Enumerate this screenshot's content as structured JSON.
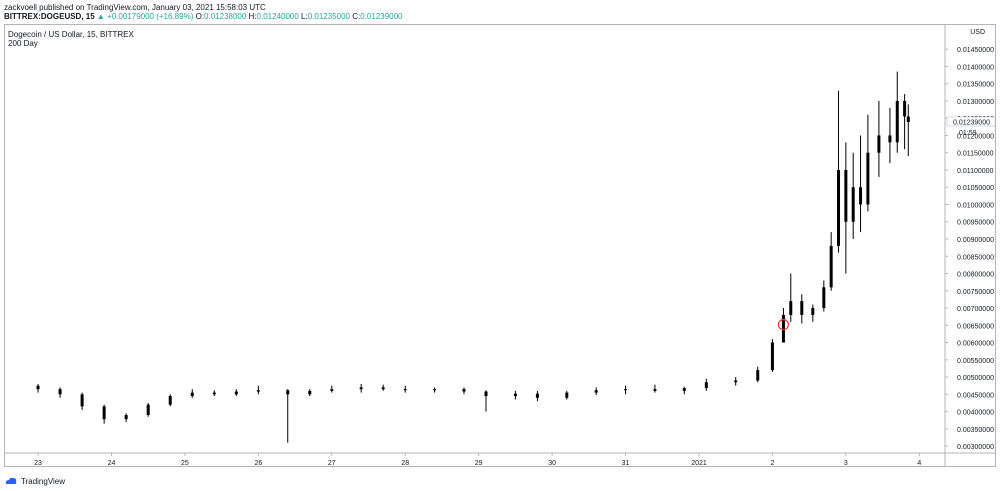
{
  "header": {
    "publisher_line": "zackvoell published on TradingView.com, January 03, 2021 15:58:03 UTC",
    "symbol": "BITTREX:DOGEUSD, 15",
    "change": "+0.00179000 (+16.89%)",
    "o_label": "O:",
    "o_value": "0.01238000",
    "h_label": "H:",
    "h_value": "0.01240000",
    "l_label": "L:",
    "l_value": "0.01235000",
    "c_label": "C:",
    "c_value": "0.01239000"
  },
  "legend": {
    "title": "Dogecoin / US Dollar, 15, BITTREX",
    "subtitle": "200 Day"
  },
  "footer": {
    "brand": "TradingView"
  },
  "colors": {
    "up": "#26a69a",
    "candle": "#000000",
    "marker": "#e53935",
    "grid": "#f0f3fa",
    "axis": "#b2b5be"
  },
  "chart_data": {
    "type": "candlestick",
    "currency_label": "USD",
    "last_price_label": "0.01239000",
    "countdown_label": "01:59",
    "y_ticks": [
      "0.01450000",
      "0.01400000",
      "0.01350000",
      "0.01300000",
      "0.01250000",
      "0.01200000",
      "0.01150000",
      "0.01100000",
      "0.01050000",
      "0.01000000",
      "0.00950000",
      "0.00900000",
      "0.00850000",
      "0.00800000",
      "0.00750000",
      "0.00700000",
      "0.00650000",
      "0.00600000",
      "0.00550000",
      "0.00500000",
      "0.00450000",
      "0.00400000",
      "0.00350000",
      "0.00300000"
    ],
    "x_tick_labels": [
      "23",
      "24",
      "25",
      "26",
      "27",
      "28",
      "29",
      "30",
      "31",
      "2021",
      "2",
      "3",
      "4"
    ],
    "ylim": [
      0.0028,
      0.0152
    ],
    "series": [
      {
        "t": 23.0,
        "o": 0.00475,
        "h": 0.0048,
        "l": 0.00455,
        "c": 0.00465
      },
      {
        "t": 23.3,
        "o": 0.00465,
        "h": 0.0047,
        "l": 0.0044,
        "c": 0.0045
      },
      {
        "t": 23.6,
        "o": 0.0045,
        "h": 0.00455,
        "l": 0.00405,
        "c": 0.00415
      },
      {
        "t": 23.9,
        "o": 0.00415,
        "h": 0.0042,
        "l": 0.00365,
        "c": 0.00378
      },
      {
        "t": 24.2,
        "o": 0.00378,
        "h": 0.00395,
        "l": 0.0037,
        "c": 0.0039
      },
      {
        "t": 24.5,
        "o": 0.0039,
        "h": 0.00425,
        "l": 0.00385,
        "c": 0.0042
      },
      {
        "t": 24.8,
        "o": 0.0042,
        "h": 0.0045,
        "l": 0.00415,
        "c": 0.00445
      },
      {
        "t": 25.1,
        "o": 0.00445,
        "h": 0.00465,
        "l": 0.0044,
        "c": 0.00455
      },
      {
        "t": 25.4,
        "o": 0.00455,
        "h": 0.00462,
        "l": 0.00445,
        "c": 0.0045
      },
      {
        "t": 25.7,
        "o": 0.0045,
        "h": 0.00465,
        "l": 0.00445,
        "c": 0.00458
      },
      {
        "t": 26.0,
        "o": 0.00458,
        "h": 0.00475,
        "l": 0.0045,
        "c": 0.00462
      },
      {
        "t": 26.4,
        "o": 0.00462,
        "h": 0.00465,
        "l": 0.0031,
        "c": 0.0045
      },
      {
        "t": 26.7,
        "o": 0.0045,
        "h": 0.00465,
        "l": 0.00445,
        "c": 0.0046
      },
      {
        "t": 27.0,
        "o": 0.0046,
        "h": 0.00475,
        "l": 0.00455,
        "c": 0.00465
      },
      {
        "t": 27.4,
        "o": 0.00465,
        "h": 0.0048,
        "l": 0.00455,
        "c": 0.0047
      },
      {
        "t": 27.7,
        "o": 0.0047,
        "h": 0.00478,
        "l": 0.0046,
        "c": 0.00465
      },
      {
        "t": 28.0,
        "o": 0.00465,
        "h": 0.00475,
        "l": 0.00455,
        "c": 0.00462
      },
      {
        "t": 28.4,
        "o": 0.00462,
        "h": 0.0047,
        "l": 0.00455,
        "c": 0.00465
      },
      {
        "t": 28.8,
        "o": 0.00465,
        "h": 0.0047,
        "l": 0.0045,
        "c": 0.00458
      },
      {
        "t": 29.1,
        "o": 0.00458,
        "h": 0.00462,
        "l": 0.004,
        "c": 0.00445
      },
      {
        "t": 29.5,
        "o": 0.00445,
        "h": 0.0046,
        "l": 0.00435,
        "c": 0.00452
      },
      {
        "t": 29.8,
        "o": 0.00452,
        "h": 0.0046,
        "l": 0.0043,
        "c": 0.0044
      },
      {
        "t": 30.2,
        "o": 0.0044,
        "h": 0.0046,
        "l": 0.00435,
        "c": 0.00455
      },
      {
        "t": 30.6,
        "o": 0.00455,
        "h": 0.0047,
        "l": 0.00448,
        "c": 0.00462
      },
      {
        "t": 31.0,
        "o": 0.00462,
        "h": 0.00475,
        "l": 0.0045,
        "c": 0.00465
      },
      {
        "t": 31.4,
        "o": 0.00465,
        "h": 0.00478,
        "l": 0.00455,
        "c": 0.0046
      },
      {
        "t": 31.8,
        "o": 0.0046,
        "h": 0.00472,
        "l": 0.0045,
        "c": 0.00468
      },
      {
        "t": 32.1,
        "o": 0.00468,
        "h": 0.00495,
        "l": 0.0046,
        "c": 0.00485
      },
      {
        "t": 32.5,
        "o": 0.00485,
        "h": 0.005,
        "l": 0.00475,
        "c": 0.0049
      },
      {
        "t": 32.8,
        "o": 0.0049,
        "h": 0.0053,
        "l": 0.00485,
        "c": 0.0052
      },
      {
        "t": 33.0,
        "o": 0.0052,
        "h": 0.0061,
        "l": 0.00515,
        "c": 0.006
      },
      {
        "t": 33.15,
        "o": 0.006,
        "h": 0.007,
        "l": 0.0061,
        "c": 0.0068
      },
      {
        "t": 33.25,
        "o": 0.0068,
        "h": 0.008,
        "l": 0.0066,
        "c": 0.0072
      },
      {
        "t": 33.4,
        "o": 0.0072,
        "h": 0.0074,
        "l": 0.00655,
        "c": 0.0068
      },
      {
        "t": 33.55,
        "o": 0.0068,
        "h": 0.0071,
        "l": 0.0066,
        "c": 0.007
      },
      {
        "t": 33.7,
        "o": 0.007,
        "h": 0.0078,
        "l": 0.0069,
        "c": 0.0076
      },
      {
        "t": 33.8,
        "o": 0.0076,
        "h": 0.0092,
        "l": 0.0075,
        "c": 0.0088
      },
      {
        "t": 33.9,
        "o": 0.0088,
        "h": 0.0133,
        "l": 0.0086,
        "c": 0.011
      },
      {
        "t": 34.0,
        "o": 0.011,
        "h": 0.0118,
        "l": 0.008,
        "c": 0.0095
      },
      {
        "t": 34.1,
        "o": 0.0095,
        "h": 0.0115,
        "l": 0.009,
        "c": 0.0105
      },
      {
        "t": 34.2,
        "o": 0.0105,
        "h": 0.012,
        "l": 0.0092,
        "c": 0.01
      },
      {
        "t": 34.3,
        "o": 0.01,
        "h": 0.0126,
        "l": 0.0098,
        "c": 0.0115
      },
      {
        "t": 34.45,
        "o": 0.0115,
        "h": 0.013,
        "l": 0.0108,
        "c": 0.012
      },
      {
        "t": 34.6,
        "o": 0.012,
        "h": 0.0128,
        "l": 0.0112,
        "c": 0.0118
      },
      {
        "t": 34.7,
        "o": 0.0118,
        "h": 0.01385,
        "l": 0.0115,
        "c": 0.013
      },
      {
        "t": 34.8,
        "o": 0.013,
        "h": 0.0132,
        "l": 0.0116,
        "c": 0.01255
      },
      {
        "t": 34.85,
        "o": 0.01255,
        "h": 0.0129,
        "l": 0.0114,
        "c": 0.01239
      }
    ]
  }
}
